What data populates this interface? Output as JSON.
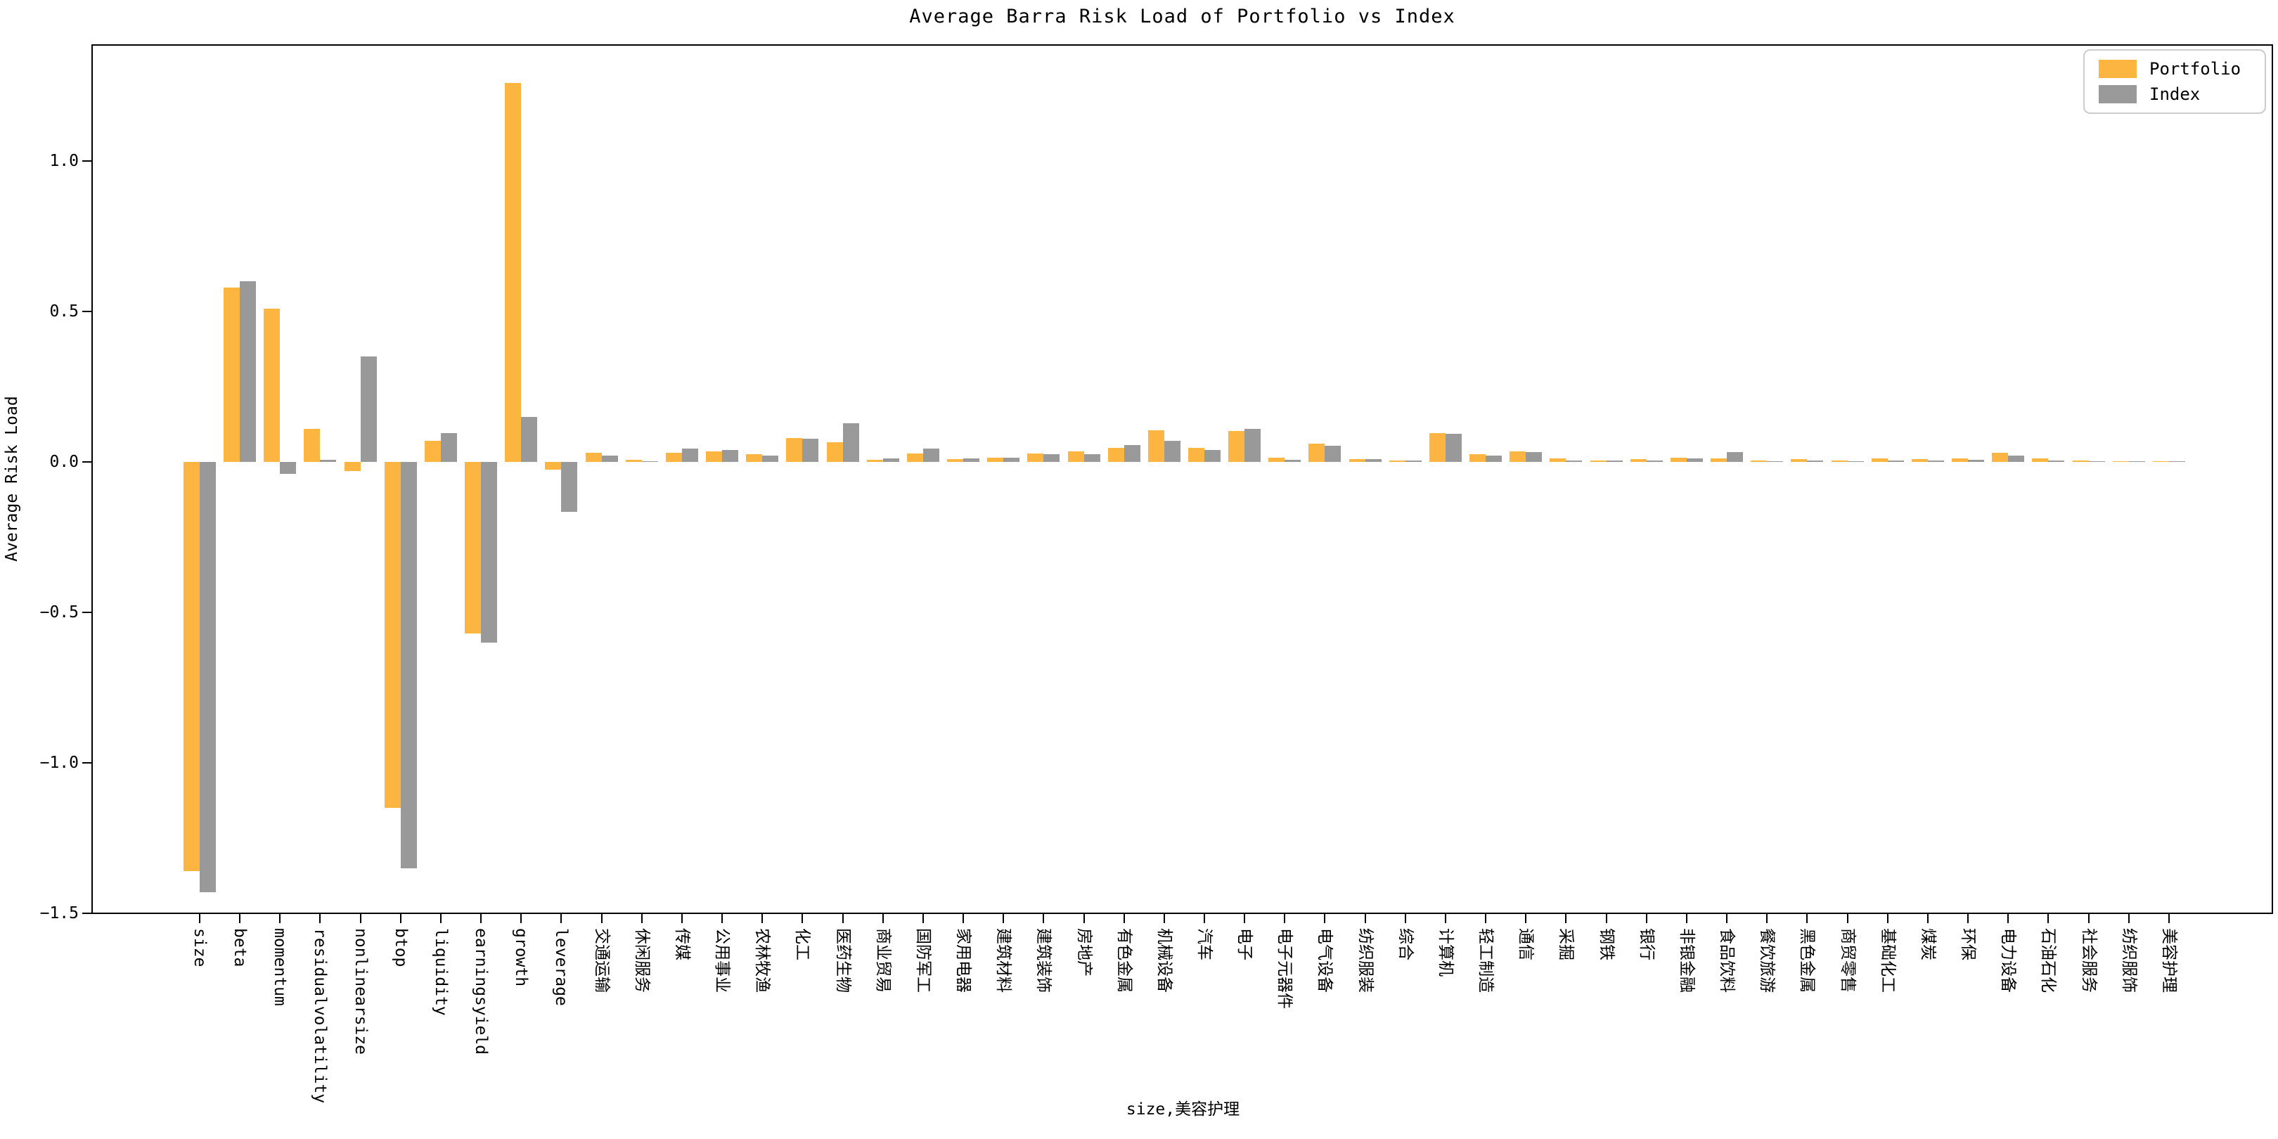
{
  "title": "Average Barra Risk Load of Portfolio vs Index",
  "ylabel": "Average Risk Load",
  "xlabel": "size,美容护理",
  "legend": {
    "items": [
      {
        "label": "Portfolio",
        "color": "#FDB541"
      },
      {
        "label": "Index",
        "color": "#999999"
      }
    ]
  },
  "colors": {
    "portfolio": "#FDB541",
    "index": "#999999",
    "axis": "#000000",
    "legend_border": "#cccccc"
  },
  "ytick_labels": [
    "1.0",
    "0.5",
    "0.0",
    "−0.5",
    "−1.0",
    "−1.5"
  ],
  "chart_data": {
    "type": "bar",
    "title": "Average Barra Risk Load of Portfolio vs Index",
    "xlabel": "size,美容护理",
    "ylabel": "Average Risk Load",
    "grid": false,
    "legend_position": "upper right",
    "ylim": [
      -1.502,
      1.388
    ],
    "yticks": [
      1.0,
      0.5,
      0.0,
      -0.5,
      -1.0,
      -1.5
    ],
    "categories": [
      "size",
      "beta",
      "momentum",
      "residualvolatility",
      "nonlinearsize",
      "btop",
      "liquidity",
      "earningsyield",
      "growth",
      "leverage",
      "交通运输",
      "休闲服务",
      "传媒",
      "公用事业",
      "农林牧渔",
      "化工",
      "医药生物",
      "商业贸易",
      "国防军工",
      "家用电器",
      "建筑材料",
      "建筑装饰",
      "房地产",
      "有色金属",
      "机械设备",
      "汽车",
      "电子",
      "电子元器件",
      "电气设备",
      "纺织服装",
      "综合",
      "计算机",
      "轻工制造",
      "通信",
      "采掘",
      "钢铁",
      "银行",
      "非银金融",
      "食品饮料",
      "餐饮旅游",
      "黑色金属",
      "商贸零售",
      "基础化工",
      "煤炭",
      "环保",
      "电力设备",
      "石油石化",
      "社会服务",
      "纺织服饰",
      "美容护理"
    ],
    "series": [
      {
        "name": "Portfolio",
        "color": "#FDB541",
        "values": [
          -1.36,
          0.58,
          0.51,
          0.11,
          -0.03,
          -1.15,
          0.07,
          -0.57,
          1.26,
          -0.025,
          0.03,
          0.008,
          0.031,
          0.036,
          0.026,
          0.08,
          0.065,
          0.008,
          0.028,
          0.01,
          0.014,
          0.029,
          0.035,
          0.048,
          0.105,
          0.046,
          0.102,
          0.014,
          0.062,
          0.009,
          0.004,
          0.095,
          0.027,
          0.035,
          0.011,
          0.004,
          0.009,
          0.014,
          0.011,
          0.004,
          0.009,
          0.005,
          0.011,
          0.009,
          0.011,
          0.03,
          0.013,
          0.006,
          0.003,
          0.003
        ]
      },
      {
        "name": "Index",
        "color": "#999999",
        "values": [
          -1.43,
          0.6,
          -0.04,
          0.008,
          0.35,
          -1.35,
          0.096,
          -0.6,
          0.15,
          -0.165,
          0.021,
          0.002,
          0.045,
          0.039,
          0.022,
          0.077,
          0.128,
          0.011,
          0.044,
          0.012,
          0.014,
          0.026,
          0.025,
          0.057,
          0.071,
          0.041,
          0.11,
          0.008,
          0.054,
          0.009,
          0.005,
          0.094,
          0.022,
          0.032,
          0.006,
          0.004,
          0.006,
          0.013,
          0.032,
          0.001,
          0.004,
          0.002,
          0.006,
          0.005,
          0.008,
          0.021,
          0.004,
          0.002,
          0.002,
          0.001
        ]
      }
    ]
  }
}
